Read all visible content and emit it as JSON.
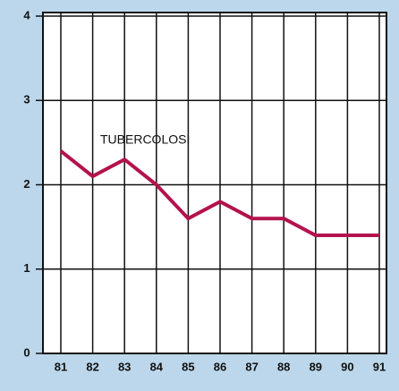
{
  "chart_data": {
    "type": "line",
    "annotation": "TUBERCOLOSI",
    "categories": [
      "81",
      "82",
      "83",
      "84",
      "85",
      "86",
      "87",
      "88",
      "89",
      "90",
      "91"
    ],
    "values": [
      2.4,
      2.1,
      2.3,
      2.0,
      1.6,
      1.8,
      1.6,
      1.6,
      1.4,
      1.4,
      1.4
    ],
    "color": "#b3124d",
    "ylim": [
      0,
      4
    ],
    "yticks": [
      0,
      1,
      2,
      3,
      4
    ],
    "grid": true
  }
}
